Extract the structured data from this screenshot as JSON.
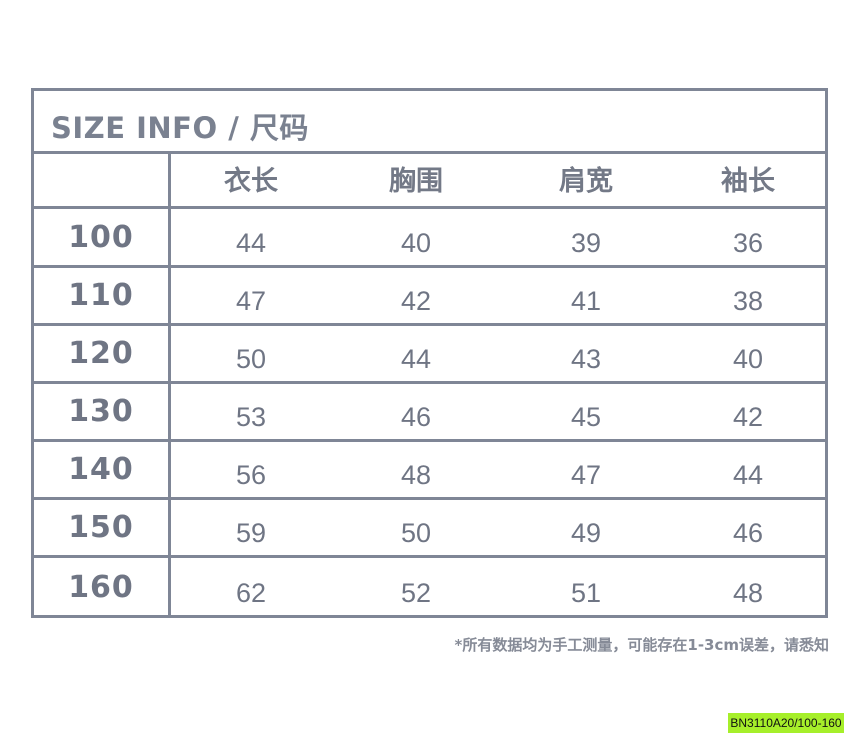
{
  "title": "SIZE INFO / 尺码",
  "columns": [
    "",
    "衣长",
    "胸围",
    "肩宽",
    "袖长"
  ],
  "rows": [
    [
      "100",
      "44",
      "40",
      "39",
      "36"
    ],
    [
      "110",
      "47",
      "42",
      "41",
      "38"
    ],
    [
      "120",
      "50",
      "44",
      "43",
      "40"
    ],
    [
      "130",
      "53",
      "46",
      "45",
      "42"
    ],
    [
      "140",
      "56",
      "48",
      "47",
      "44"
    ],
    [
      "150",
      "59",
      "50",
      "49",
      "46"
    ],
    [
      "160",
      "62",
      "52",
      "51",
      "48"
    ]
  ],
  "note": "*所有数据均为手工测量，可能存在1-3cm误差，请悉知",
  "product_code": "BN3110A20/100-160",
  "colors": {
    "border": "#7f8696",
    "text": "#737987",
    "code_bg": "#a6ef2a"
  }
}
